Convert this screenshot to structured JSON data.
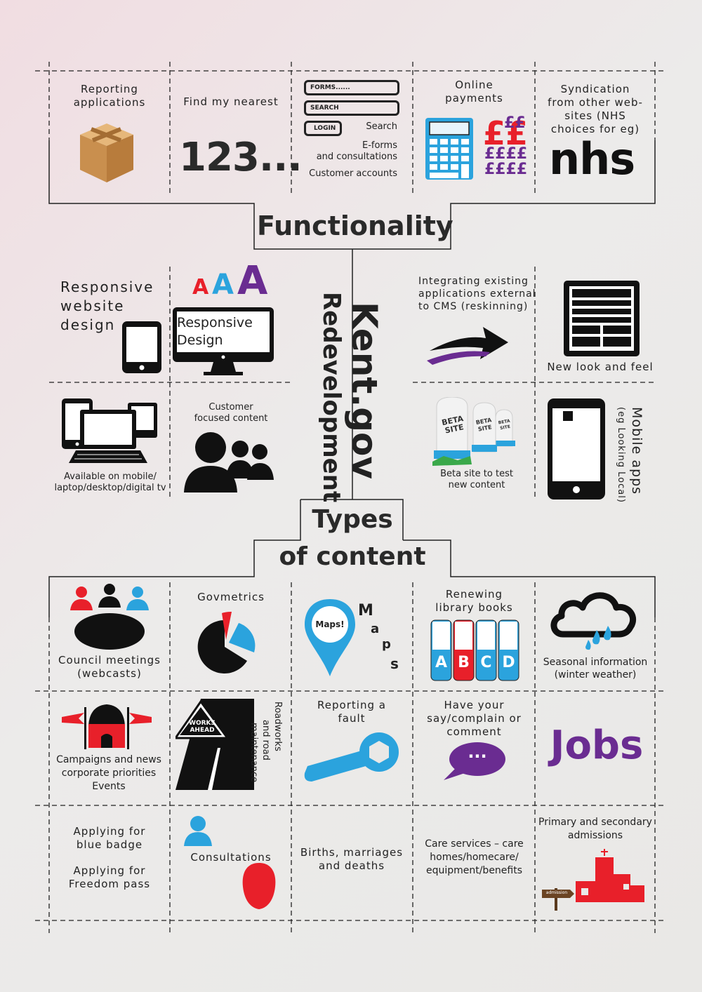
{
  "main_title": "Kent.gov",
  "main_subtitle": "Redevelopment",
  "sections": {
    "functionality": "Functionality",
    "types_of_content_1": "Types",
    "types_of_content_2": "of content"
  },
  "functionality": {
    "reporting_1": "Reporting",
    "reporting_2": "applications",
    "find_nearest": "Find my nearest",
    "find_nearest_number": "123...",
    "forms_label": "FORMS......",
    "search_label": "SEARCH",
    "login_label": "LOGIN",
    "search": "Search",
    "eforms_1": "E-forms",
    "eforms_2": "and consultations",
    "customer_accounts": "Customer accounts",
    "payments_1": "Online",
    "payments_2": "payments",
    "pounds": [
      "££",
      "££",
      "££££",
      "££££"
    ],
    "syndication_1": "Syndication",
    "syndication_2": "from other web-",
    "syndication_3": "sites (NHS",
    "syndication_4": "choices for eg)",
    "nhs": "nhs",
    "responsive_1": "Responsive",
    "responsive_2": "website",
    "responsive_3": "design",
    "aaa": [
      "A",
      "A",
      "A"
    ],
    "responsive_screen_1": "Responsive",
    "responsive_screen_2": "Design",
    "integrating_1": "Integrating existing",
    "integrating_2": "applications external",
    "integrating_3": "to CMS (reskinning)",
    "new_look": "New look and feel",
    "available_1": "Available on mobile/",
    "available_2": "laptop/desktop/digital tv",
    "customer_focused_1": "Customer",
    "customer_focused_2": "focused content",
    "beta_tag": "BETA",
    "beta_tag_2": "SITE",
    "beta_1": "Beta site to test",
    "beta_2": "new content",
    "mobile_apps_1": "Mobile apps",
    "mobile_apps_2": "(eg Looking Local)"
  },
  "content": {
    "council_1": "Council meetings",
    "council_2": "(webcasts)",
    "govmetrics": "Govmetrics",
    "maps_pin": "Maps!",
    "maps_letters": [
      "M",
      "a",
      "p",
      "s"
    ],
    "library_1": "Renewing",
    "library_2": "library books",
    "books": [
      "A",
      "B",
      "C",
      "D"
    ],
    "seasonal_1": "Seasonal information",
    "seasonal_2": "(winter weather)",
    "campaigns_1": "Campaigns and news",
    "campaigns_2": "corporate priorities",
    "campaigns_3": "Events",
    "works_sign_1": "WORKS",
    "works_sign_2": "AHEAD",
    "roadworks_1": "Roadworks",
    "roadworks_2": "and road",
    "roadworks_3": "maintenance",
    "fault_1": "Reporting a",
    "fault_2": "fault",
    "say_1": "Have your",
    "say_2": "say/complain or",
    "say_3": "comment",
    "bubble": "...",
    "jobs": "Jobs",
    "badge_1": "Applying for",
    "badge_2": "blue badge",
    "freedom_1": "Applying for",
    "freedom_2": "Freedom pass",
    "consultations": "Consultations",
    "births_1": "Births, marriages",
    "births_2": "and deaths",
    "care_1": "Care services – care",
    "care_2": "homes/homecare/",
    "care_3": "equipment/benefits",
    "admissions_1": "Primary and secondary",
    "admissions_2": "admissions",
    "admission_sign": "admission"
  },
  "colors": {
    "red": "#e8202a",
    "blue": "#2ba3dd",
    "purple": "#6a2c91",
    "black": "#111111",
    "cardboard": "#d9a466"
  }
}
